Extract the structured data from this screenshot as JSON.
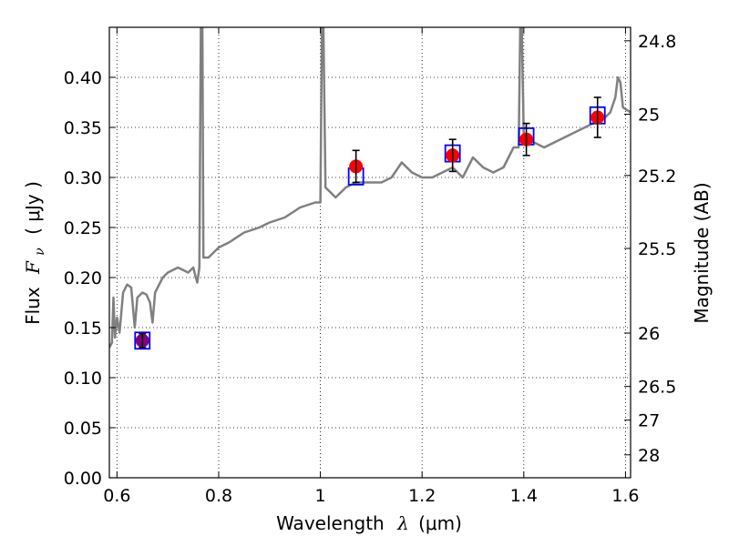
{
  "chart_data": {
    "type": "scatter",
    "xlabel_prefix": "Wavelength",
    "xlabel_symbol": "λ",
    "xlabel_unit": "(μm)",
    "ylabel_prefix": "Flux",
    "ylabel_symbol": "F",
    "ylabel_subscript": "ν",
    "ylabel_unit": "( μJy )",
    "y2label": "Magnitude (AB)",
    "xlim": [
      0.585,
      1.61
    ],
    "ylim": [
      0.0,
      0.45
    ],
    "xticks": [
      0.6,
      0.8,
      1.0,
      1.2,
      1.4,
      1.6
    ],
    "xtick_labels": [
      "0.6",
      "0.8",
      "1",
      "1.2",
      "1.4",
      "1.6"
    ],
    "yticks": [
      0.0,
      0.05,
      0.1,
      0.15,
      0.2,
      0.25,
      0.3,
      0.35,
      0.4
    ],
    "ytick_labels": [
      "0.00",
      "0.05",
      "0.10",
      "0.15",
      "0.20",
      "0.25",
      "0.30",
      "0.35",
      "0.40"
    ],
    "magnitude_ticks": [
      "24.8",
      "25",
      "25.2",
      "25.5",
      "26",
      "26.5",
      "27",
      "28"
    ],
    "grid": true,
    "colors": {
      "spectrum": "#808080",
      "observed": "#ff0000",
      "model": "#0000ff",
      "errorbar": "#000000",
      "overlap": "#800080"
    },
    "spectrum": [
      [
        0.585,
        0.13
      ],
      [
        0.59,
        0.135
      ],
      [
        0.593,
        0.18
      ],
      [
        0.596,
        0.14
      ],
      [
        0.6,
        0.16
      ],
      [
        0.605,
        0.145
      ],
      [
        0.612,
        0.185
      ],
      [
        0.62,
        0.193
      ],
      [
        0.628,
        0.19
      ],
      [
        0.635,
        0.15
      ],
      [
        0.64,
        0.18
      ],
      [
        0.65,
        0.185
      ],
      [
        0.658,
        0.183
      ],
      [
        0.665,
        0.175
      ],
      [
        0.67,
        0.155
      ],
      [
        0.675,
        0.185
      ],
      [
        0.69,
        0.2
      ],
      [
        0.7,
        0.205
      ],
      [
        0.72,
        0.21
      ],
      [
        0.74,
        0.205
      ],
      [
        0.75,
        0.21
      ],
      [
        0.755,
        0.2
      ],
      [
        0.758,
        0.195
      ],
      [
        0.762,
        0.21
      ],
      [
        0.765,
        0.45
      ],
      [
        0.768,
        0.45
      ],
      [
        0.77,
        0.22
      ],
      [
        0.78,
        0.22
      ],
      [
        0.8,
        0.23
      ],
      [
        0.82,
        0.235
      ],
      [
        0.85,
        0.245
      ],
      [
        0.88,
        0.25
      ],
      [
        0.9,
        0.255
      ],
      [
        0.93,
        0.26
      ],
      [
        0.96,
        0.27
      ],
      [
        0.99,
        0.275
      ],
      [
        1.0,
        0.275
      ],
      [
        1.003,
        0.45
      ],
      [
        1.006,
        0.45
      ],
      [
        1.01,
        0.29
      ],
      [
        1.02,
        0.285
      ],
      [
        1.03,
        0.28
      ],
      [
        1.04,
        0.285
      ],
      [
        1.05,
        0.29
      ],
      [
        1.07,
        0.295
      ],
      [
        1.1,
        0.295
      ],
      [
        1.12,
        0.295
      ],
      [
        1.14,
        0.3
      ],
      [
        1.16,
        0.315
      ],
      [
        1.18,
        0.305
      ],
      [
        1.2,
        0.3
      ],
      [
        1.22,
        0.3
      ],
      [
        1.24,
        0.305
      ],
      [
        1.26,
        0.31
      ],
      [
        1.27,
        0.305
      ],
      [
        1.28,
        0.3
      ],
      [
        1.3,
        0.32
      ],
      [
        1.32,
        0.31
      ],
      [
        1.34,
        0.305
      ],
      [
        1.36,
        0.31
      ],
      [
        1.38,
        0.33
      ],
      [
        1.39,
        0.33
      ],
      [
        1.393,
        0.45
      ],
      [
        1.396,
        0.45
      ],
      [
        1.4,
        0.34
      ],
      [
        1.42,
        0.335
      ],
      [
        1.44,
        0.33
      ],
      [
        1.46,
        0.335
      ],
      [
        1.48,
        0.34
      ],
      [
        1.5,
        0.345
      ],
      [
        1.52,
        0.35
      ],
      [
        1.54,
        0.355
      ],
      [
        1.56,
        0.36
      ],
      [
        1.57,
        0.365
      ],
      [
        1.58,
        0.38
      ],
      [
        1.585,
        0.4
      ],
      [
        1.59,
        0.395
      ],
      [
        1.595,
        0.37
      ],
      [
        1.61,
        0.365
      ]
    ],
    "observed_points": [
      {
        "x": 0.65,
        "y": 0.137,
        "err": 0.007,
        "overlap": true
      },
      {
        "x": 1.07,
        "y": 0.311,
        "err": 0.016
      },
      {
        "x": 1.26,
        "y": 0.322,
        "err": 0.016
      },
      {
        "x": 1.405,
        "y": 0.338,
        "err": 0.016
      },
      {
        "x": 1.545,
        "y": 0.36,
        "err": 0.02
      }
    ],
    "model_points": [
      {
        "x": 0.65,
        "y": 0.137
      },
      {
        "x": 1.07,
        "y": 0.301
      },
      {
        "x": 1.26,
        "y": 0.324
      },
      {
        "x": 1.405,
        "y": 0.341
      },
      {
        "x": 1.545,
        "y": 0.362
      }
    ]
  }
}
